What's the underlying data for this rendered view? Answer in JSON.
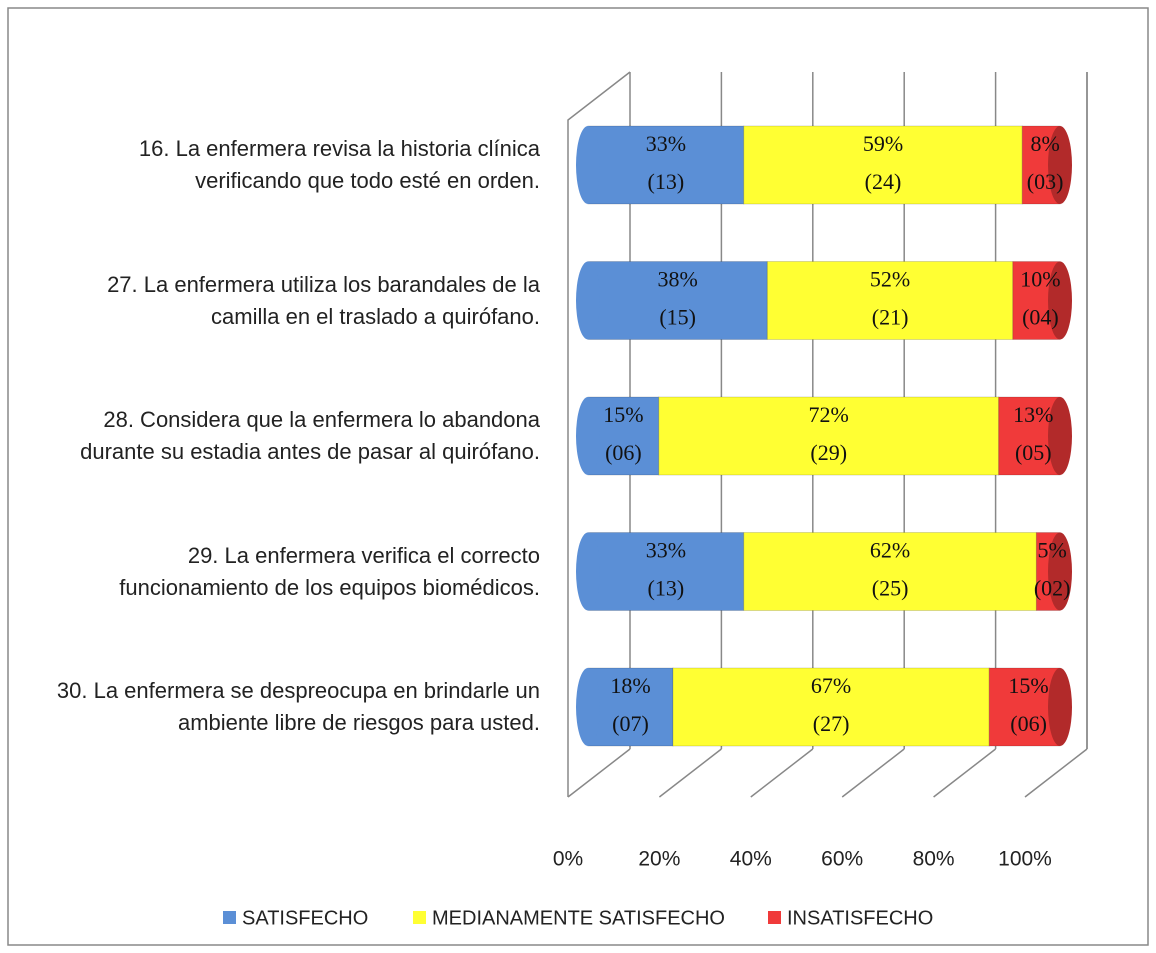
{
  "chart_data": {
    "type": "stacked_bar_horizontal_percent",
    "categories": [
      "16. La enfermera revisa la historia clínica verificando que todo esté en orden.",
      "27. La enfermera utiliza los barandales de la camilla en el traslado a quirófano.",
      "28. Considera que la enfermera lo abandona durante su estadia antes de pasar al quirófano.",
      "29. La enfermera verifica el correcto funcionamiento de los equipos biomédicos.",
      "30. La enfermera se despreocupa en brindarle un ambiente libre de riesgos para usted."
    ],
    "series": [
      {
        "name": "SATISFECHO",
        "color": "#5b8fd6",
        "values": [
          33,
          38,
          15,
          33,
          18
        ],
        "value_labels": [
          "33%",
          "38%",
          "15%",
          "33%",
          "18%"
        ],
        "count_labels": [
          "(13)",
          "(15)",
          "(06)",
          "(13)",
          "(07)"
        ]
      },
      {
        "name": "MEDIANAMENTE SATISFECHO",
        "color": "#ffff33",
        "values": [
          59,
          52,
          72,
          62,
          67
        ],
        "value_labels": [
          "59%",
          "52%",
          "72%",
          "62%",
          "67%"
        ],
        "count_labels": [
          "(24)",
          "(21)",
          "(29)",
          "(25)",
          "(27)"
        ]
      },
      {
        "name": "INSATISFECHO",
        "color": "#f03a3a",
        "values": [
          8,
          10,
          13,
          5,
          15
        ],
        "value_labels": [
          "8%",
          "10%",
          "13%",
          "5%",
          "15%"
        ],
        "count_labels": [
          "(03)",
          "(04)",
          "(05)",
          "(02)",
          "(06)"
        ]
      }
    ],
    "xlim": [
      0,
      100
    ],
    "xticks": [
      {
        "value": 0,
        "label": "0%"
      },
      {
        "value": 20,
        "label": "20%"
      },
      {
        "value": 40,
        "label": "40%"
      },
      {
        "value": 60,
        "label": "60%"
      },
      {
        "value": 80,
        "label": "80%"
      },
      {
        "value": 100,
        "label": "100%"
      }
    ],
    "grid": true,
    "legend": "bottom"
  }
}
